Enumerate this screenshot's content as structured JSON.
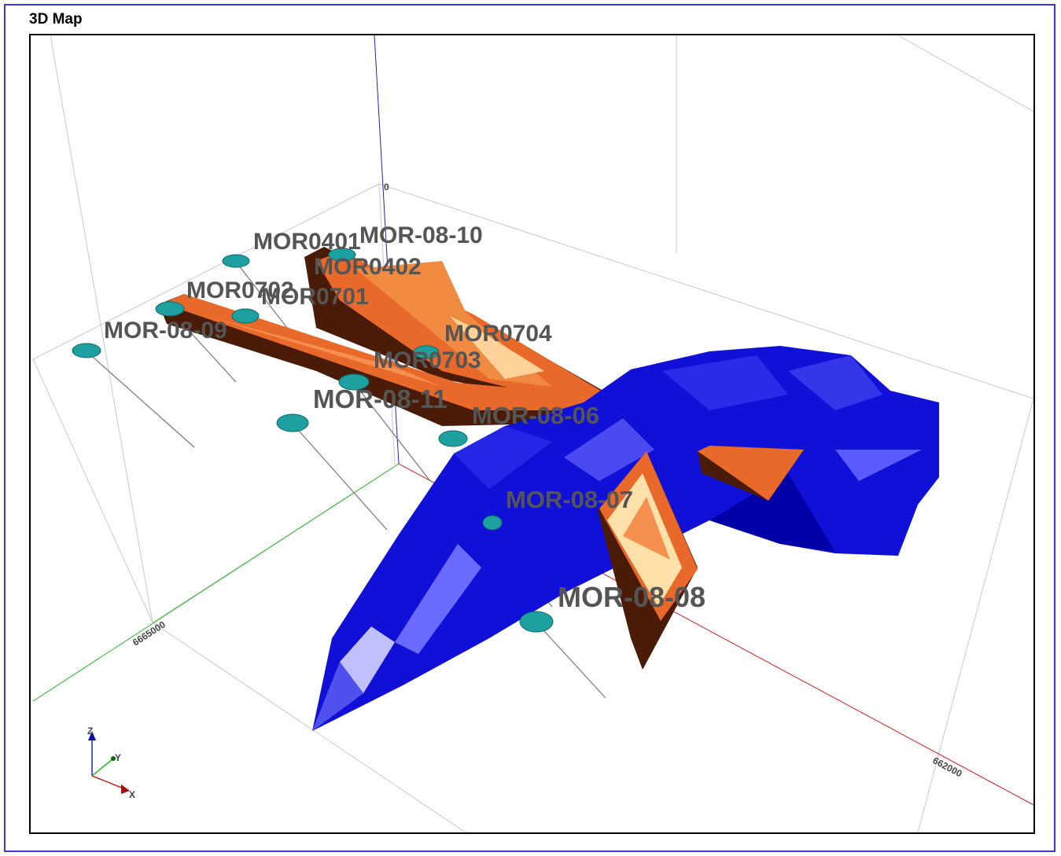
{
  "window": {
    "title": "3D Map"
  },
  "axes": {
    "tick_labels": {
      "z_top": "0",
      "y_value": "6665000",
      "x_value": "662000"
    },
    "triad": {
      "z": "Z",
      "y": "Y",
      "x": "X"
    },
    "colors": {
      "x": "#cc2020",
      "y": "#22bb22",
      "z": "#2020cc"
    }
  },
  "drillholes": [
    {
      "label": "MOR0401"
    },
    {
      "label": "MOR-08-10"
    },
    {
      "label": "MOR0402"
    },
    {
      "label": "MOR0702"
    },
    {
      "label": "MOR0701"
    },
    {
      "label": "MOR-08-09"
    },
    {
      "label": "MOR0704"
    },
    {
      "label": "MOR0703"
    },
    {
      "label": "MOR-08-11"
    },
    {
      "label": "MOR-08-06"
    },
    {
      "label": "MOR-08-07"
    },
    {
      "label": "MOR-08-08"
    }
  ],
  "colors": {
    "orebody": "#1414e0",
    "veins": "#e8692a",
    "collars": "#1fa0a0"
  }
}
